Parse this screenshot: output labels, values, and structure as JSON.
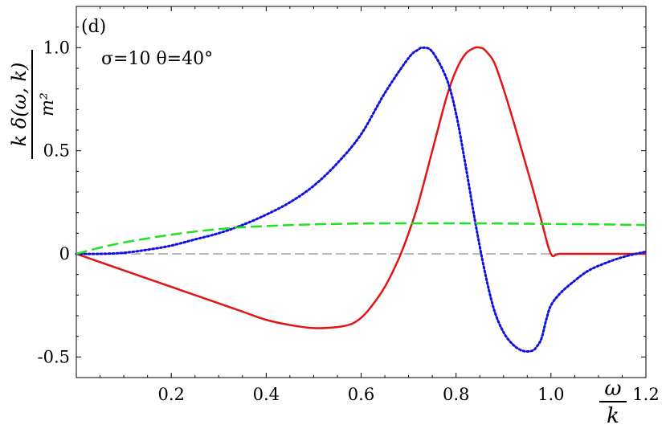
{
  "chart_data": {
    "type": "line",
    "panel_label": "(d)",
    "parameters": "σ=10  θ=40°",
    "xlabel": {
      "numerator": "ω",
      "denominator": "k"
    },
    "ylabel": {
      "numerator": "k δ(ω, k)",
      "denominator": "m²"
    },
    "xlim": [
      0.0,
      1.2
    ],
    "ylim": [
      -0.6,
      1.2
    ],
    "xticks": [
      0.2,
      0.4,
      0.6,
      0.8,
      1.0,
      1.2
    ],
    "xtick_labels": [
      "0.2",
      "0.4",
      "0.6",
      "0.8",
      "1.0",
      "1.2"
    ],
    "yticks": [
      -0.5,
      0,
      0.5,
      1.0
    ],
    "ytick_labels": [
      "-0.5",
      "0",
      "0.5",
      "1.0"
    ],
    "zero_line": {
      "y": 0,
      "style": "dashed",
      "color": "#777777"
    },
    "series": [
      {
        "style": "solid",
        "color": "#e31414",
        "x": [
          0.0,
          0.05,
          0.1,
          0.15,
          0.2,
          0.25,
          0.3,
          0.35,
          0.4,
          0.45,
          0.5,
          0.55,
          0.58,
          0.6,
          0.62,
          0.65,
          0.68,
          0.7,
          0.72,
          0.75,
          0.78,
          0.8,
          0.82,
          0.84,
          0.85,
          0.86,
          0.88,
          0.9,
          0.92,
          0.94,
          0.96,
          0.98,
          1.0,
          1.02,
          1.1,
          1.2
        ],
        "y": [
          0.0,
          -0.04,
          -0.08,
          -0.12,
          -0.16,
          -0.2,
          -0.24,
          -0.28,
          -0.32,
          -0.345,
          -0.36,
          -0.355,
          -0.34,
          -0.31,
          -0.26,
          -0.16,
          -0.02,
          0.1,
          0.24,
          0.5,
          0.76,
          0.89,
          0.97,
          1.0,
          1.0,
          0.99,
          0.93,
          0.8,
          0.65,
          0.49,
          0.33,
          0.16,
          0.0,
          0.0,
          0.0,
          0.0
        ]
      },
      {
        "style": "dotted",
        "color": "#1010e0",
        "x": [
          0.0,
          0.05,
          0.1,
          0.15,
          0.2,
          0.25,
          0.3,
          0.35,
          0.4,
          0.45,
          0.5,
          0.55,
          0.6,
          0.65,
          0.7,
          0.72,
          0.73,
          0.75,
          0.78,
          0.8,
          0.82,
          0.84,
          0.86,
          0.88,
          0.9,
          0.92,
          0.94,
          0.96,
          0.97,
          0.98,
          0.99,
          1.0,
          1.02,
          1.05,
          1.08,
          1.12,
          1.16,
          1.2
        ],
        "y": [
          0.0,
          0.0,
          0.005,
          0.02,
          0.04,
          0.07,
          0.1,
          0.14,
          0.19,
          0.25,
          0.33,
          0.44,
          0.58,
          0.78,
          0.95,
          0.99,
          1.0,
          0.98,
          0.85,
          0.68,
          0.43,
          0.16,
          -0.08,
          -0.27,
          -0.38,
          -0.44,
          -0.47,
          -0.47,
          -0.45,
          -0.41,
          -0.32,
          -0.25,
          -0.19,
          -0.13,
          -0.08,
          -0.04,
          -0.01,
          0.01
        ]
      },
      {
        "style": "dashed",
        "color": "#22e022",
        "x": [
          0.0,
          0.05,
          0.1,
          0.15,
          0.2,
          0.25,
          0.3,
          0.35,
          0.4,
          0.5,
          0.6,
          0.7,
          0.8,
          0.9,
          1.0,
          1.1,
          1.2
        ],
        "y": [
          0.0,
          0.03,
          0.055,
          0.075,
          0.093,
          0.108,
          0.12,
          0.129,
          0.135,
          0.143,
          0.147,
          0.148,
          0.148,
          0.147,
          0.145,
          0.143,
          0.14
        ]
      }
    ]
  }
}
